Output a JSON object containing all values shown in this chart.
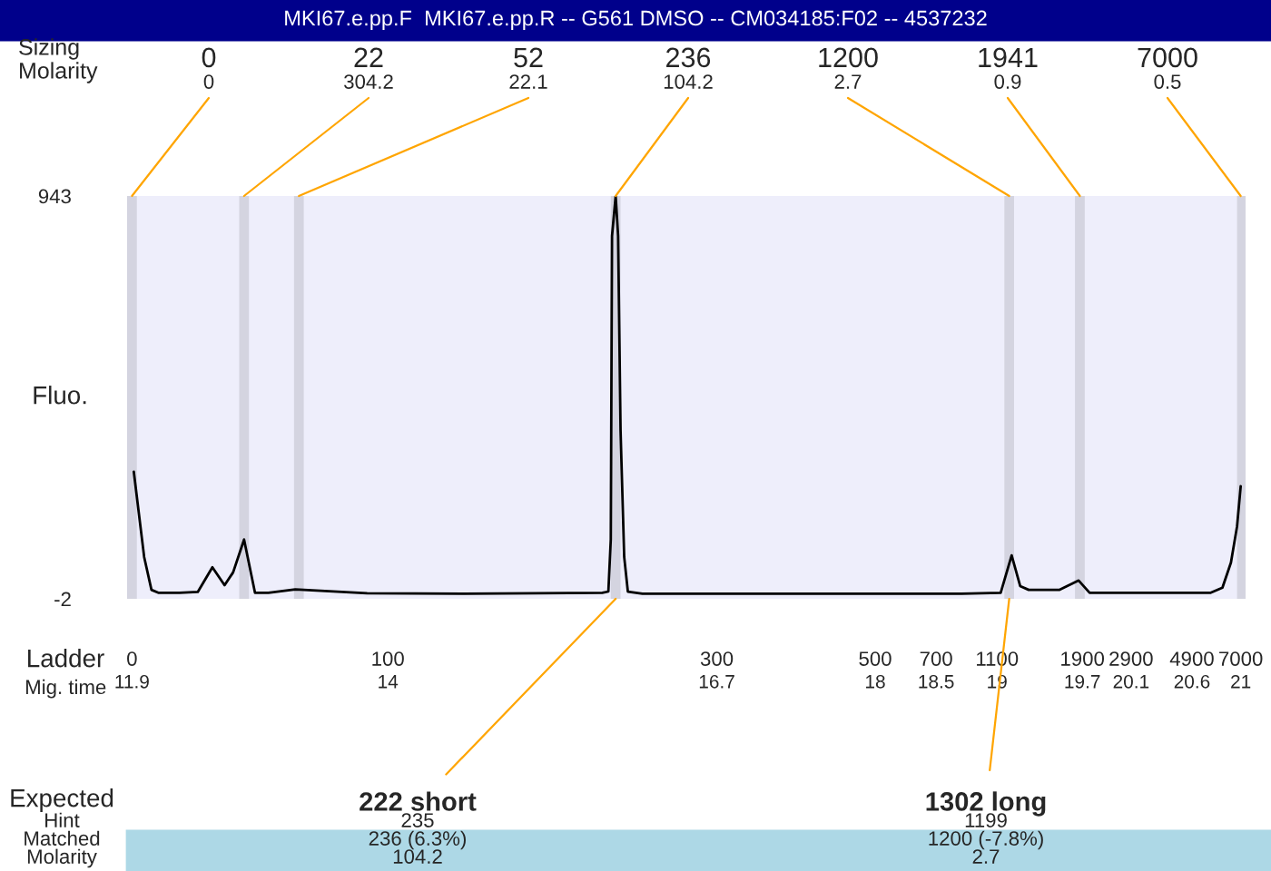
{
  "chart_data": {
    "type": "line",
    "title": "MKI67.e.pp.F  MKI67.e.pp.R -- G561 DMSO -- CM034185:F02 -- 4537232",
    "ylabel": "Fluo.",
    "xlabel": "Mig. time",
    "series": [
      {
        "color": "#000000",
        "x": [
          11.915,
          12.0,
          12.06,
          12.12,
          12.29,
          12.44,
          12.56,
          12.66,
          12.73,
          12.82,
          12.91,
          13.02,
          13.24,
          13.31,
          13.83,
          14.63,
          15.21,
          15.76,
          15.81,
          15.83,
          15.84,
          15.87,
          15.89,
          15.91,
          15.94,
          15.97,
          16.09,
          16.67,
          17.4,
          18.13,
          18.71,
          19.03,
          19.12,
          19.19,
          19.26,
          19.51,
          19.67,
          19.76,
          20.31,
          20.75,
          20.85,
          20.92,
          20.97,
          21.0
        ],
        "values": [
          296,
          96,
          19,
          12,
          12,
          14,
          72,
          30,
          60,
          137,
          12,
          12,
          20,
          19,
          11,
          10,
          11,
          12,
          15,
          138,
          849,
          943,
          849,
          394,
          96,
          15,
          10,
          10,
          10,
          10,
          10,
          12,
          100,
          28,
          19,
          19,
          41,
          12,
          12,
          12,
          24,
          83,
          168,
          262
        ]
      }
    ],
    "xlim": [
      11.86,
      21.04
    ],
    "ylim": [
      -2,
      943
    ],
    "xticks": [
      11.9,
      14,
      16.7,
      18,
      18.5,
      19,
      19.7,
      20.1,
      20.6,
      21
    ],
    "yticks": [
      -2,
      943
    ],
    "grid": false,
    "bands": [
      {
        "axis": "x",
        "from": 11.86,
        "to": 11.94,
        "color": "#d4d4e0"
      },
      {
        "axis": "x",
        "from": 12.78,
        "to": 12.86,
        "color": "#d4d4e0"
      },
      {
        "axis": "x",
        "from": 13.23,
        "to": 13.31,
        "color": "#d4d4e0"
      },
      {
        "axis": "x",
        "from": 15.83,
        "to": 15.91,
        "color": "#d4d4e0"
      },
      {
        "axis": "x",
        "from": 19.06,
        "to": 19.14,
        "color": "#d4d4e0"
      },
      {
        "axis": "x",
        "from": 19.64,
        "to": 19.72,
        "color": "#d4d4e0"
      },
      {
        "axis": "x",
        "from": 20.97,
        "to": 21.04,
        "color": "#d4d4e0"
      }
    ],
    "annotations": [
      {
        "text": "0\n0",
        "x": 11.9,
        "y": 943
      },
      {
        "text": "22\n304.2",
        "x": 12.82,
        "y": 943
      },
      {
        "text": "52\n22.1",
        "x": 13.27,
        "y": 943
      },
      {
        "text": "236\n104.2",
        "x": 15.87,
        "y": 943
      },
      {
        "text": "1200\n2.7",
        "x": 19.1,
        "y": 943
      },
      {
        "text": "1941\n0.9",
        "x": 19.68,
        "y": 943
      },
      {
        "text": "7000\n0.5",
        "x": 21.0,
        "y": 943
      },
      {
        "text": "0",
        "x": 11.9,
        "y": -2
      },
      {
        "text": "100",
        "x": 14,
        "y": -2
      },
      {
        "text": "300",
        "x": 16.7,
        "y": -2
      },
      {
        "text": "500",
        "x": 18,
        "y": -2
      },
      {
        "text": "700",
        "x": 18.5,
        "y": -2
      },
      {
        "text": "1100",
        "x": 19,
        "y": -2
      },
      {
        "text": "1900",
        "x": 19.7,
        "y": -2
      },
      {
        "text": "2900",
        "x": 20.1,
        "y": -2
      },
      {
        "text": "4900",
        "x": 20.6,
        "y": -2
      },
      {
        "text": "7000",
        "x": 21,
        "y": -2
      },
      {
        "text": "222 short",
        "x": 15.87,
        "y": -2
      },
      {
        "text": "1302 long",
        "x": 19.1,
        "y": -2
      },
      "Sizing",
      "Molarity",
      "Ladder",
      "Expected",
      "Hint",
      "Matched",
      "Molarity",
      "235",
      "236 (6.3%)",
      "104.2",
      "1199",
      "1200 (-7.8%)",
      "2.7"
    ]
  }
}
